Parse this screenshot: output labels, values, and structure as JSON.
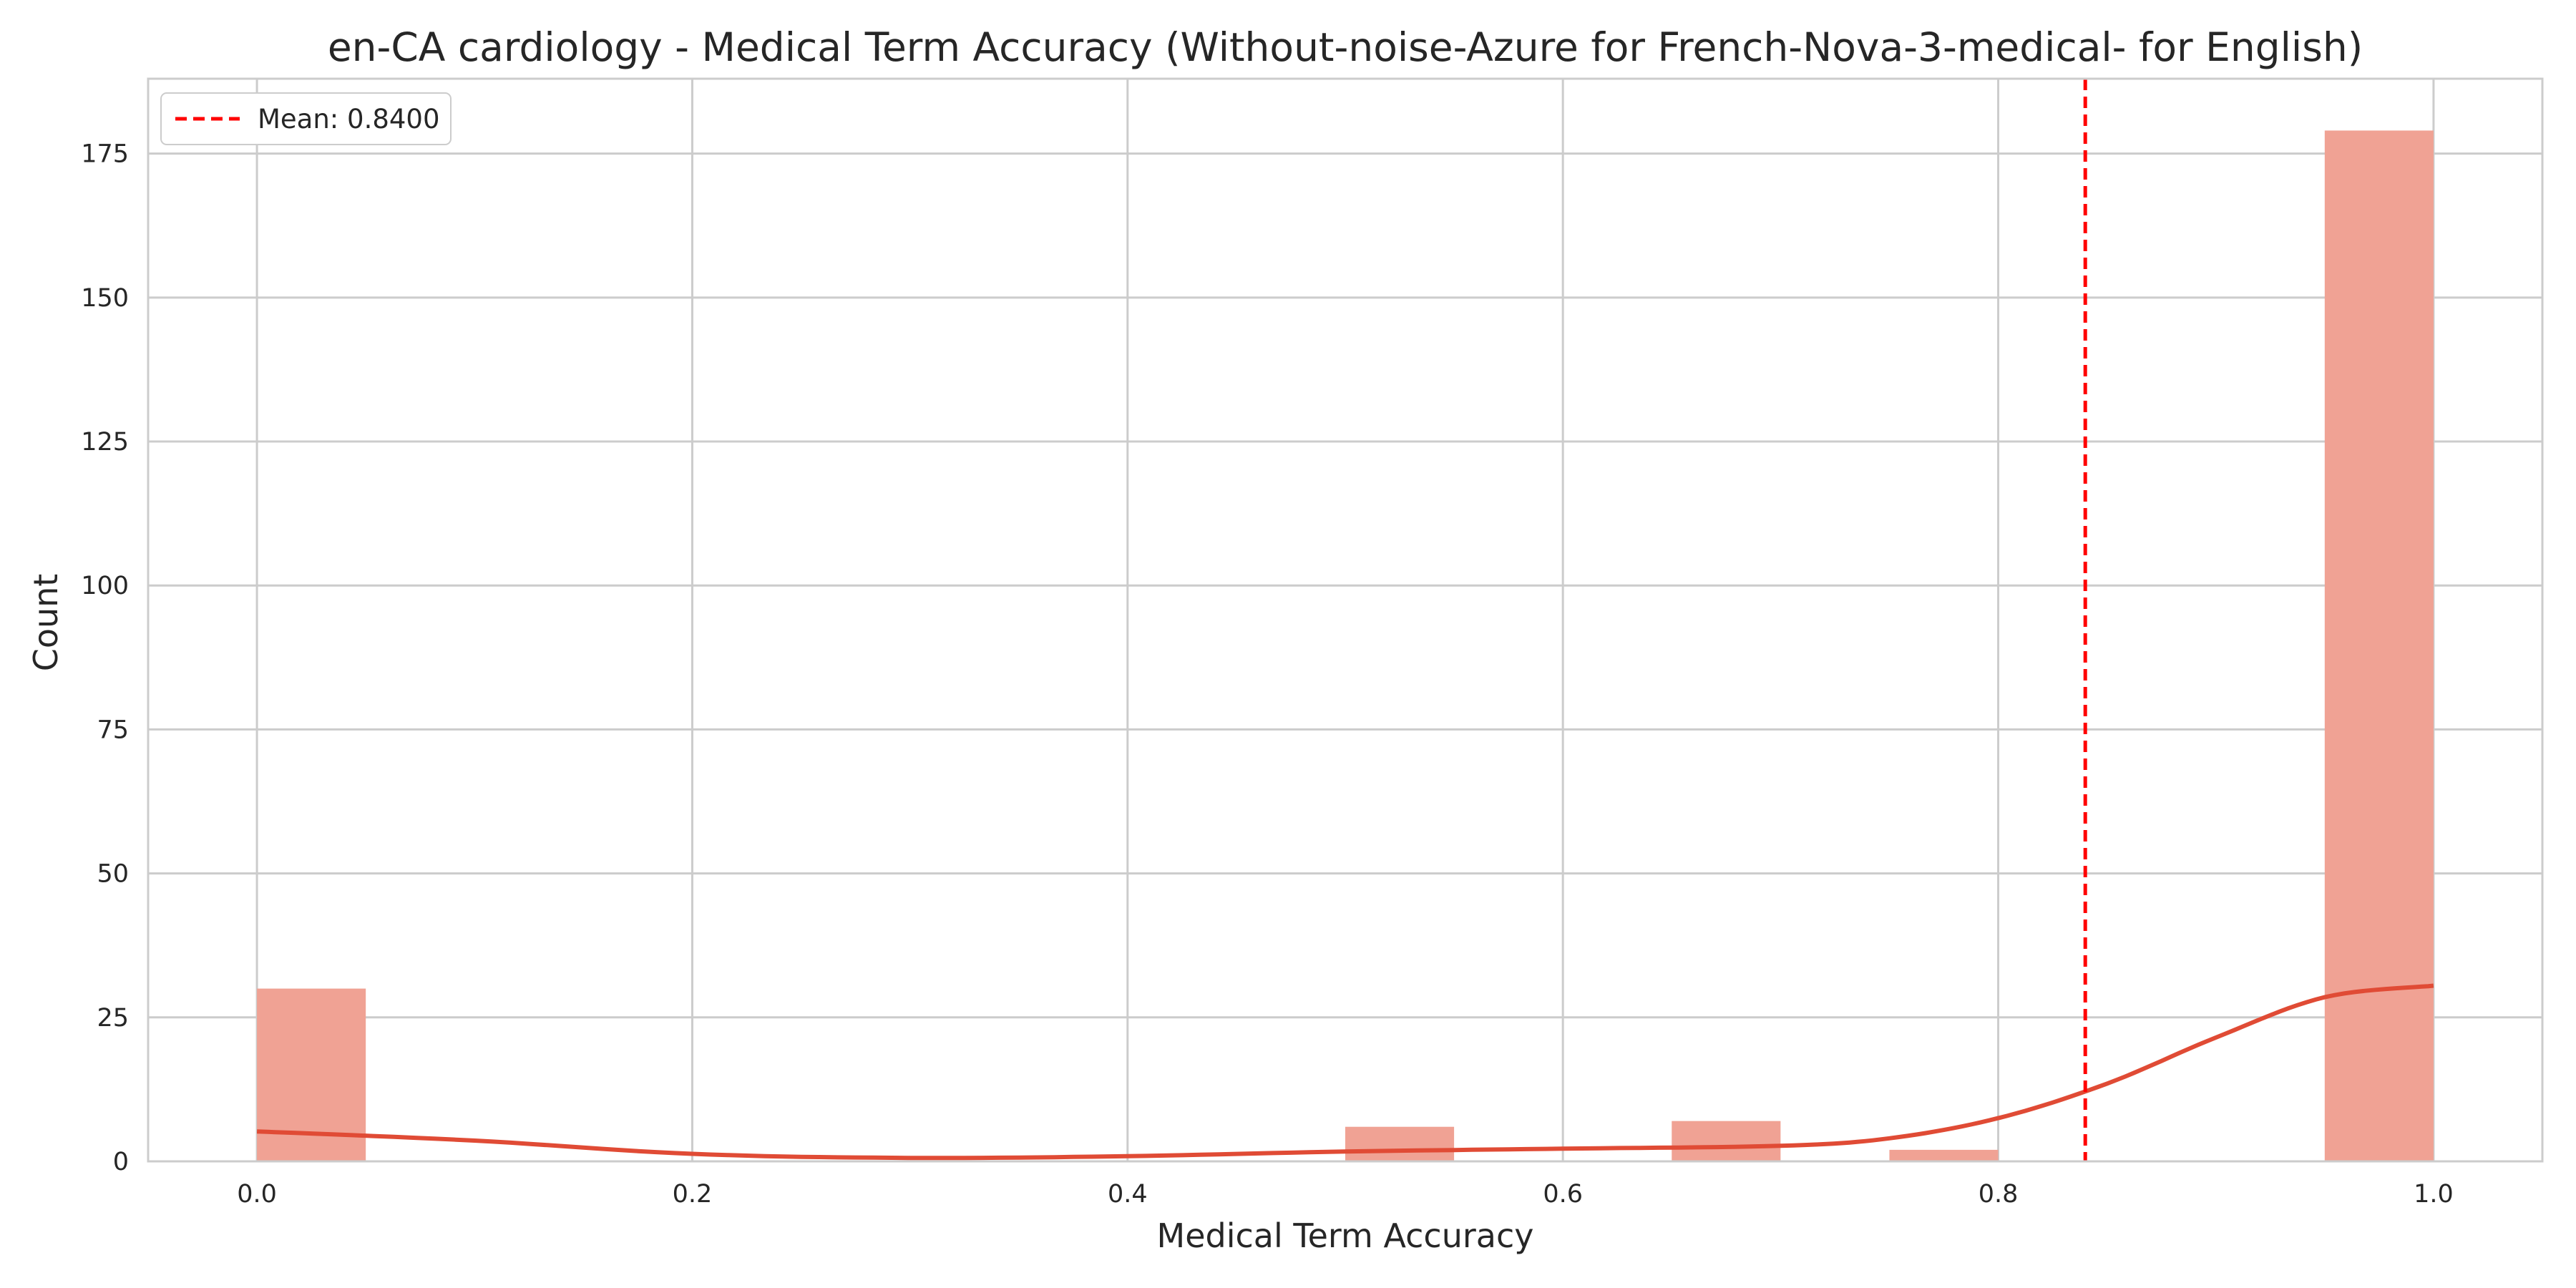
{
  "chart_data": {
    "type": "bar",
    "title": "en-CA cardiology - Medical Term Accuracy (Without-noise-Azure for French-Nova-3-medical- for English)",
    "xlabel": "Medical Term Accuracy",
    "ylabel": "Count",
    "xlim": [
      -0.05,
      1.05
    ],
    "ylim": [
      0,
      188
    ],
    "x_ticks": [
      0.0,
      0.2,
      0.4,
      0.6,
      0.8,
      1.0
    ],
    "x_tick_labels": [
      "0.0",
      "0.2",
      "0.4",
      "0.6",
      "0.8",
      "1.0"
    ],
    "y_ticks": [
      0,
      25,
      50,
      75,
      100,
      125,
      150,
      175
    ],
    "y_tick_labels": [
      "0",
      "25",
      "50",
      "75",
      "100",
      "125",
      "150",
      "175"
    ],
    "grid": true,
    "bins": [
      {
        "start": 0.0,
        "end": 0.05,
        "count": 30
      },
      {
        "start": 0.5,
        "end": 0.55,
        "count": 6
      },
      {
        "start": 0.65,
        "end": 0.7,
        "count": 7
      },
      {
        "start": 0.75,
        "end": 0.8,
        "count": 2
      },
      {
        "start": 0.95,
        "end": 1.0,
        "count": 179
      }
    ],
    "kde": {
      "x": [
        0.0,
        0.1,
        0.2,
        0.3,
        0.4,
        0.5,
        0.6,
        0.7,
        0.75,
        0.8,
        0.85,
        0.9,
        0.95,
        1.0
      ],
      "y": [
        5.2,
        3.6,
        1.3,
        0.6,
        0.9,
        1.7,
        2.2,
        2.7,
        4.0,
        7.5,
        13.5,
        21.5,
        28.5,
        30.5
      ]
    },
    "mean_line": {
      "value": 0.84,
      "label": "Mean: 0.8400"
    },
    "legend_position": "upper-left",
    "colors": {
      "bar": "#f0a294",
      "kde": "#e04b35",
      "mean": "#ff0000",
      "grid": "#cccccc"
    }
  }
}
